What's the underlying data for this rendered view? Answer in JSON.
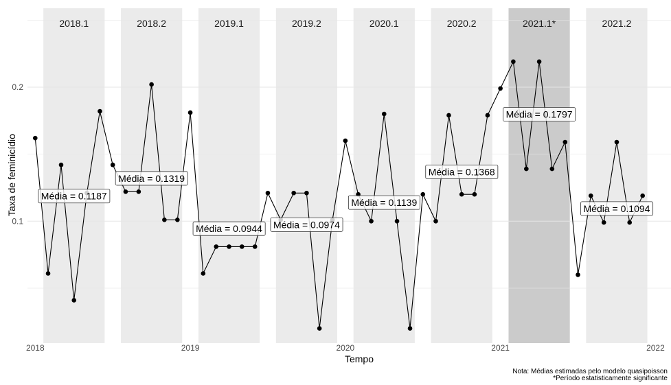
{
  "chart_data": {
    "type": "line",
    "title": "",
    "xlabel": "Tempo",
    "ylabel": "Taxa de feminicídio",
    "xlim": [
      2017.95,
      2022.1
    ],
    "ylim": [
      0.009,
      0.265
    ],
    "x_ticks": [
      {
        "value": 2018,
        "label": "2018"
      },
      {
        "value": 2019,
        "label": "2019"
      },
      {
        "value": 2020,
        "label": "2020"
      },
      {
        "value": 2021,
        "label": "2021"
      },
      {
        "value": 2022,
        "label": "2022"
      }
    ],
    "y_ticks": [
      {
        "value": 0.1,
        "label": "0.1"
      },
      {
        "value": 0.2,
        "label": "0.2"
      }
    ],
    "grid": true,
    "semesters": [
      {
        "label": "2018.1",
        "start": 2018.0,
        "end": 2018.5,
        "mean": 0.1187,
        "mean_label": "Média = 0.1187",
        "highlight": false
      },
      {
        "label": "2018.2",
        "start": 2018.5,
        "end": 2019.0,
        "mean": 0.1319,
        "mean_label": "Média = 0.1319",
        "highlight": false
      },
      {
        "label": "2019.1",
        "start": 2019.0,
        "end": 2019.5,
        "mean": 0.0944,
        "mean_label": "Média = 0.0944",
        "highlight": false
      },
      {
        "label": "2019.2",
        "start": 2019.5,
        "end": 2020.0,
        "mean": 0.0974,
        "mean_label": "Média = 0.0974",
        "highlight": false
      },
      {
        "label": "2020.1",
        "start": 2020.0,
        "end": 2020.5,
        "mean": 0.1139,
        "mean_label": "Média = 0.1139",
        "highlight": false
      },
      {
        "label": "2020.2",
        "start": 2020.5,
        "end": 2021.0,
        "mean": 0.1368,
        "mean_label": "Média = 0.1368",
        "highlight": false
      },
      {
        "label": "2021.1*",
        "start": 2021.0,
        "end": 2021.5,
        "mean": 0.1797,
        "mean_label": "Média = 0.1797",
        "highlight": true
      },
      {
        "label": "2021.2",
        "start": 2021.5,
        "end": 2022.0,
        "mean": 0.1094,
        "mean_label": "Média = 0.1094",
        "highlight": false
      }
    ],
    "series": [
      {
        "x": [
          2018.0,
          2018.083,
          2018.167,
          2018.25,
          2018.333,
          2018.417,
          2018.5,
          2018.583,
          2018.667,
          2018.75,
          2018.833,
          2018.917,
          2019.0,
          2019.083,
          2019.167,
          2019.25,
          2019.333,
          2019.417,
          2019.5,
          2019.583,
          2019.667,
          2019.75,
          2019.833,
          2019.917,
          2020.0,
          2020.083,
          2020.167,
          2020.25,
          2020.333,
          2020.417,
          2020.5,
          2020.583,
          2020.667,
          2020.75,
          2020.833,
          2020.917,
          2021.0,
          2021.083,
          2021.167,
          2021.25,
          2021.333,
          2021.417,
          2021.5,
          2021.583,
          2021.667,
          2021.75,
          2021.833,
          2021.917
        ],
        "y": [
          0.162,
          0.061,
          0.142,
          0.041,
          0.121,
          0.182,
          0.142,
          0.122,
          0.122,
          0.202,
          0.101,
          0.101,
          0.181,
          0.061,
          0.081,
          0.081,
          0.081,
          0.081,
          0.121,
          0.101,
          0.121,
          0.121,
          0.02,
          0.101,
          0.16,
          0.12,
          0.1,
          0.18,
          0.1,
          0.02,
          0.12,
          0.1,
          0.179,
          0.12,
          0.12,
          0.179,
          0.199,
          0.219,
          0.139,
          0.219,
          0.139,
          0.159,
          0.06,
          0.119,
          0.099,
          0.159,
          0.099,
          0.119
        ]
      }
    ],
    "note_lines": [
      "Nota: Médias estimadas pelo modelo quasipoisson",
      "*Período estatisticamente significante"
    ]
  }
}
